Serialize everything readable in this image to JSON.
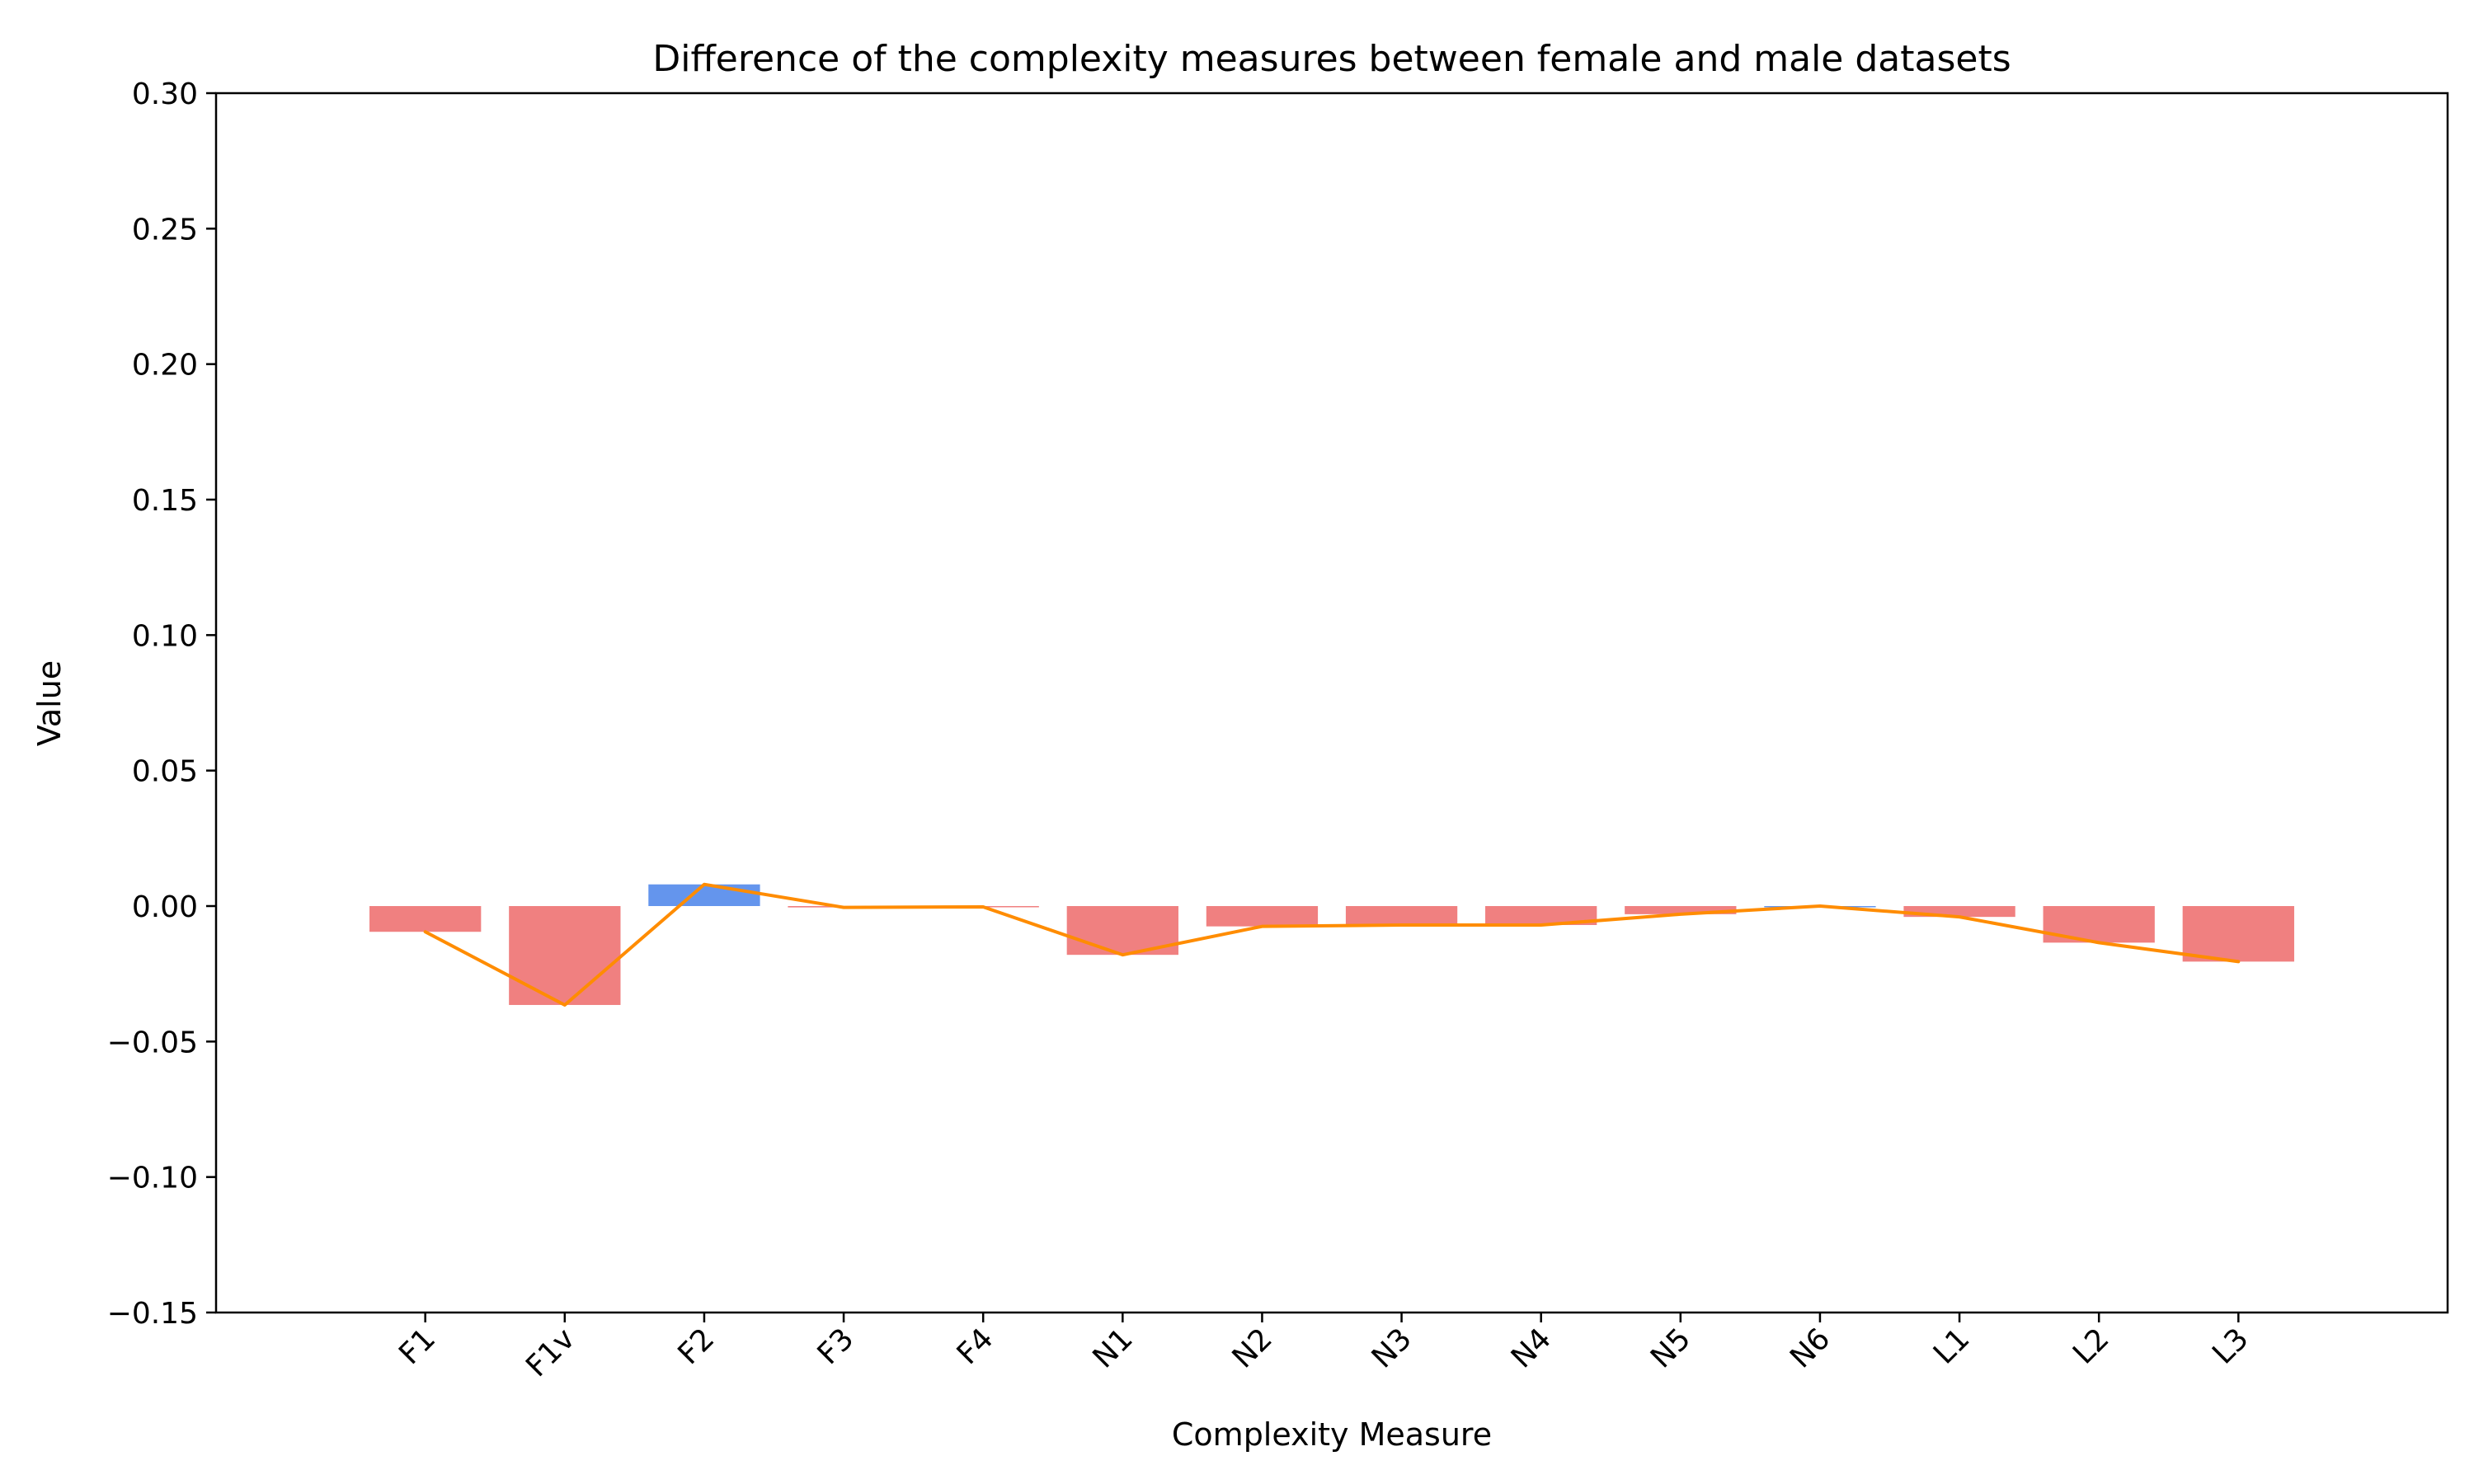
{
  "chart_data": {
    "type": "bar",
    "title": "Difference of the complexity measures between female and male datasets",
    "xlabel": "Complexity Measure",
    "ylabel": "Value",
    "ylim": [
      -0.15,
      0.3
    ],
    "yticks": [
      -0.15,
      -0.1,
      -0.05,
      0.0,
      0.05,
      0.1,
      0.15,
      0.2,
      0.25,
      0.3
    ],
    "ytick_labels": [
      "−0.15",
      "−0.10",
      "−0.05",
      "0.00",
      "0.05",
      "0.10",
      "0.15",
      "0.20",
      "0.25",
      "0.30"
    ],
    "categories": [
      "F1",
      "F1v",
      "F2",
      "F3",
      "F4",
      "N1",
      "N2",
      "N3",
      "N4",
      "N5",
      "N6",
      "L1",
      "L2",
      "L3"
    ],
    "values": [
      -0.0095,
      -0.0365,
      0.008,
      -0.0005,
      -0.0003,
      -0.018,
      -0.0075,
      -0.007,
      -0.007,
      -0.003,
      0.0,
      -0.004,
      -0.0135,
      -0.0205
    ],
    "grid": false,
    "colors": {
      "negative_bar": "#f08080",
      "positive_bar": "#6495ed",
      "line": "#ff8c00",
      "axes": "#000000"
    }
  }
}
